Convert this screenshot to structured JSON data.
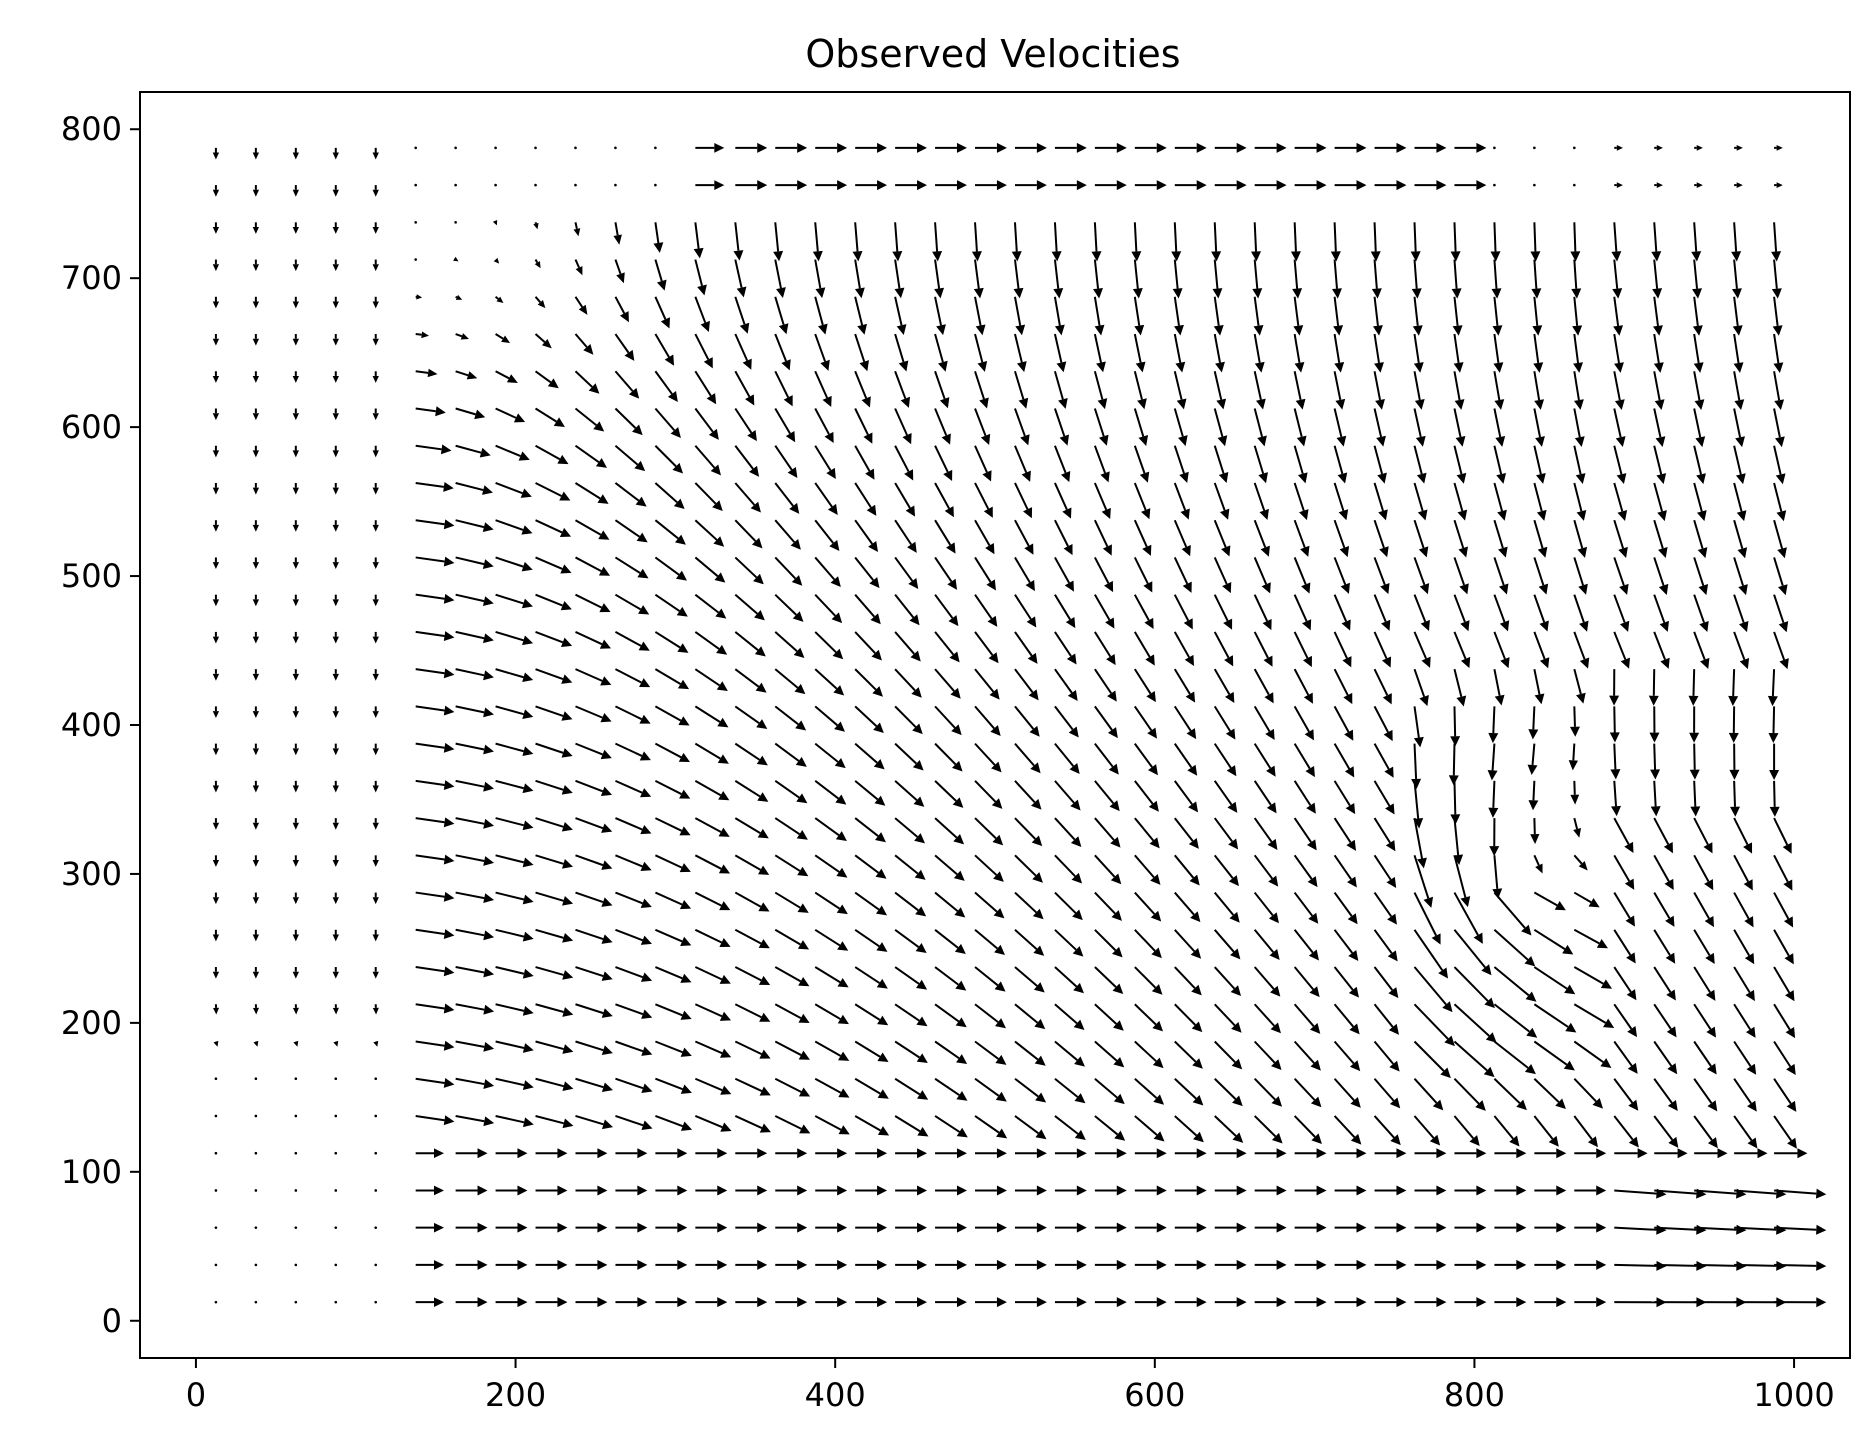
{
  "chart_data": {
    "type": "quiver",
    "title": "Observed Velocities",
    "xlabel": "",
    "ylabel": "",
    "xlim": [
      -35,
      1035
    ],
    "ylim": [
      -25,
      825
    ],
    "x_ticks": [
      0,
      200,
      400,
      600,
      800,
      1000
    ],
    "y_ticks": [
      0,
      100,
      200,
      300,
      400,
      500,
      600,
      700,
      800
    ],
    "grid": false,
    "color": "#000000",
    "grid_x_start": 12.5,
    "grid_x_step": 25,
    "grid_x_count": 40,
    "grid_y_start": 12.5,
    "grid_y_step": 25,
    "grid_y_count": 32,
    "field_description": "velocity vectors on a regular grid; lengths in data units"
  }
}
